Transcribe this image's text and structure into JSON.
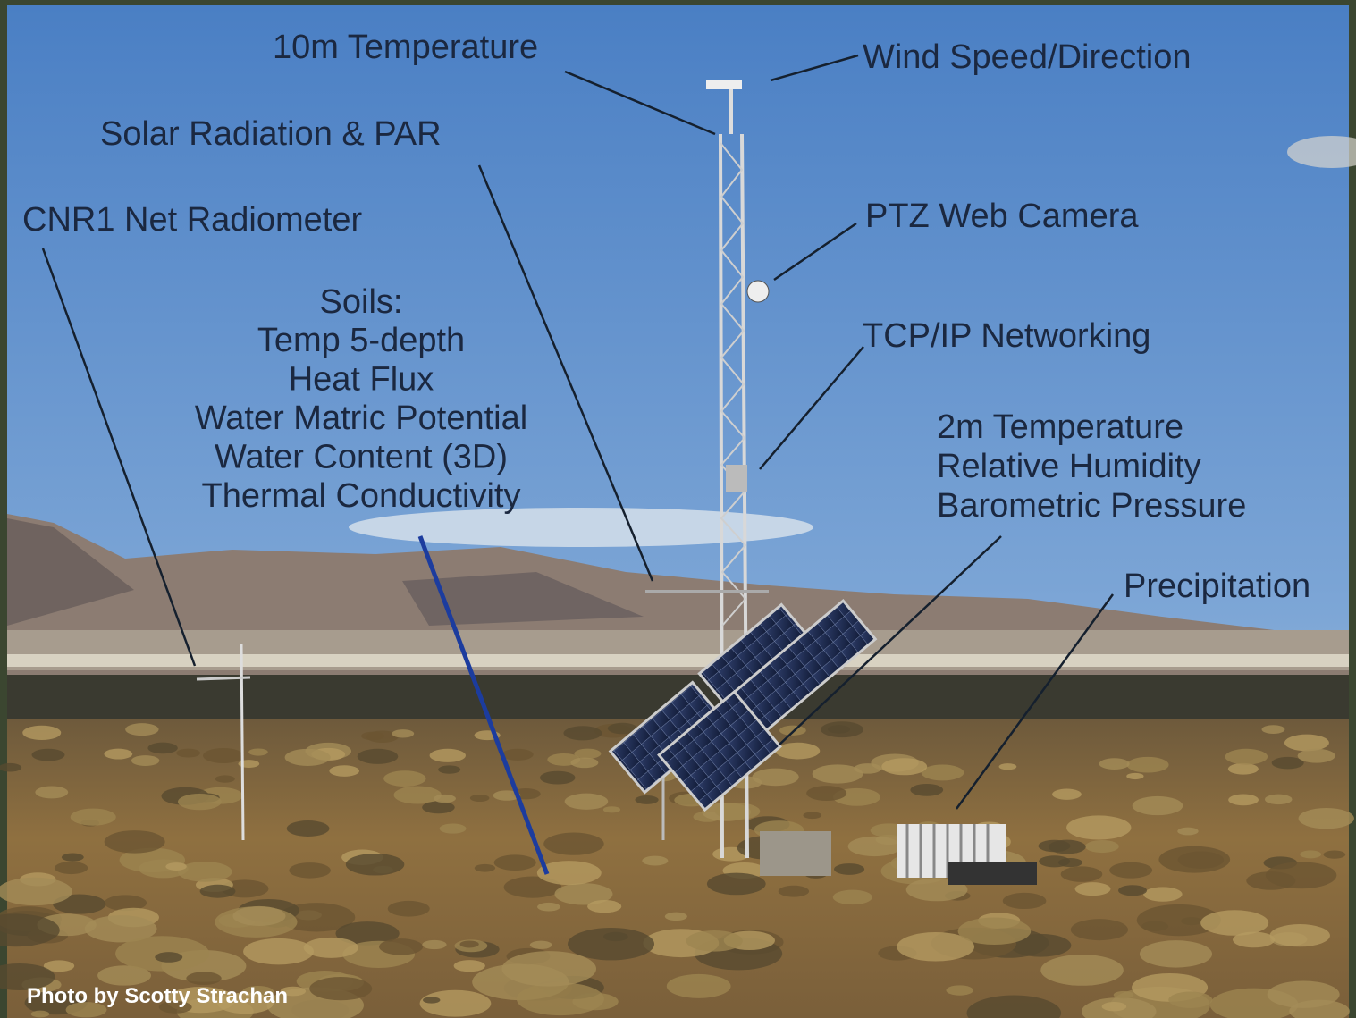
{
  "labels": {
    "temp10m": "10m Temperature",
    "wind": "Wind Speed/Direction",
    "solar": "Solar Radiation & PAR",
    "cnr1": "CNR1 Net Radiometer",
    "ptz": "PTZ Web Camera",
    "tcpip": "TCP/IP Networking",
    "precip": "Precipitation"
  },
  "soils": {
    "heading": "Soils:",
    "lines": [
      "Temp 5-depth",
      "Heat Flux",
      "Water Matric Potential",
      "Water Content (3D)",
      "Thermal Conductivity"
    ]
  },
  "met2m": {
    "lines": [
      "2m Temperature",
      "Relative Humidity",
      "Barometric Pressure"
    ]
  },
  "credit": "Photo by Scotty Strachan"
}
